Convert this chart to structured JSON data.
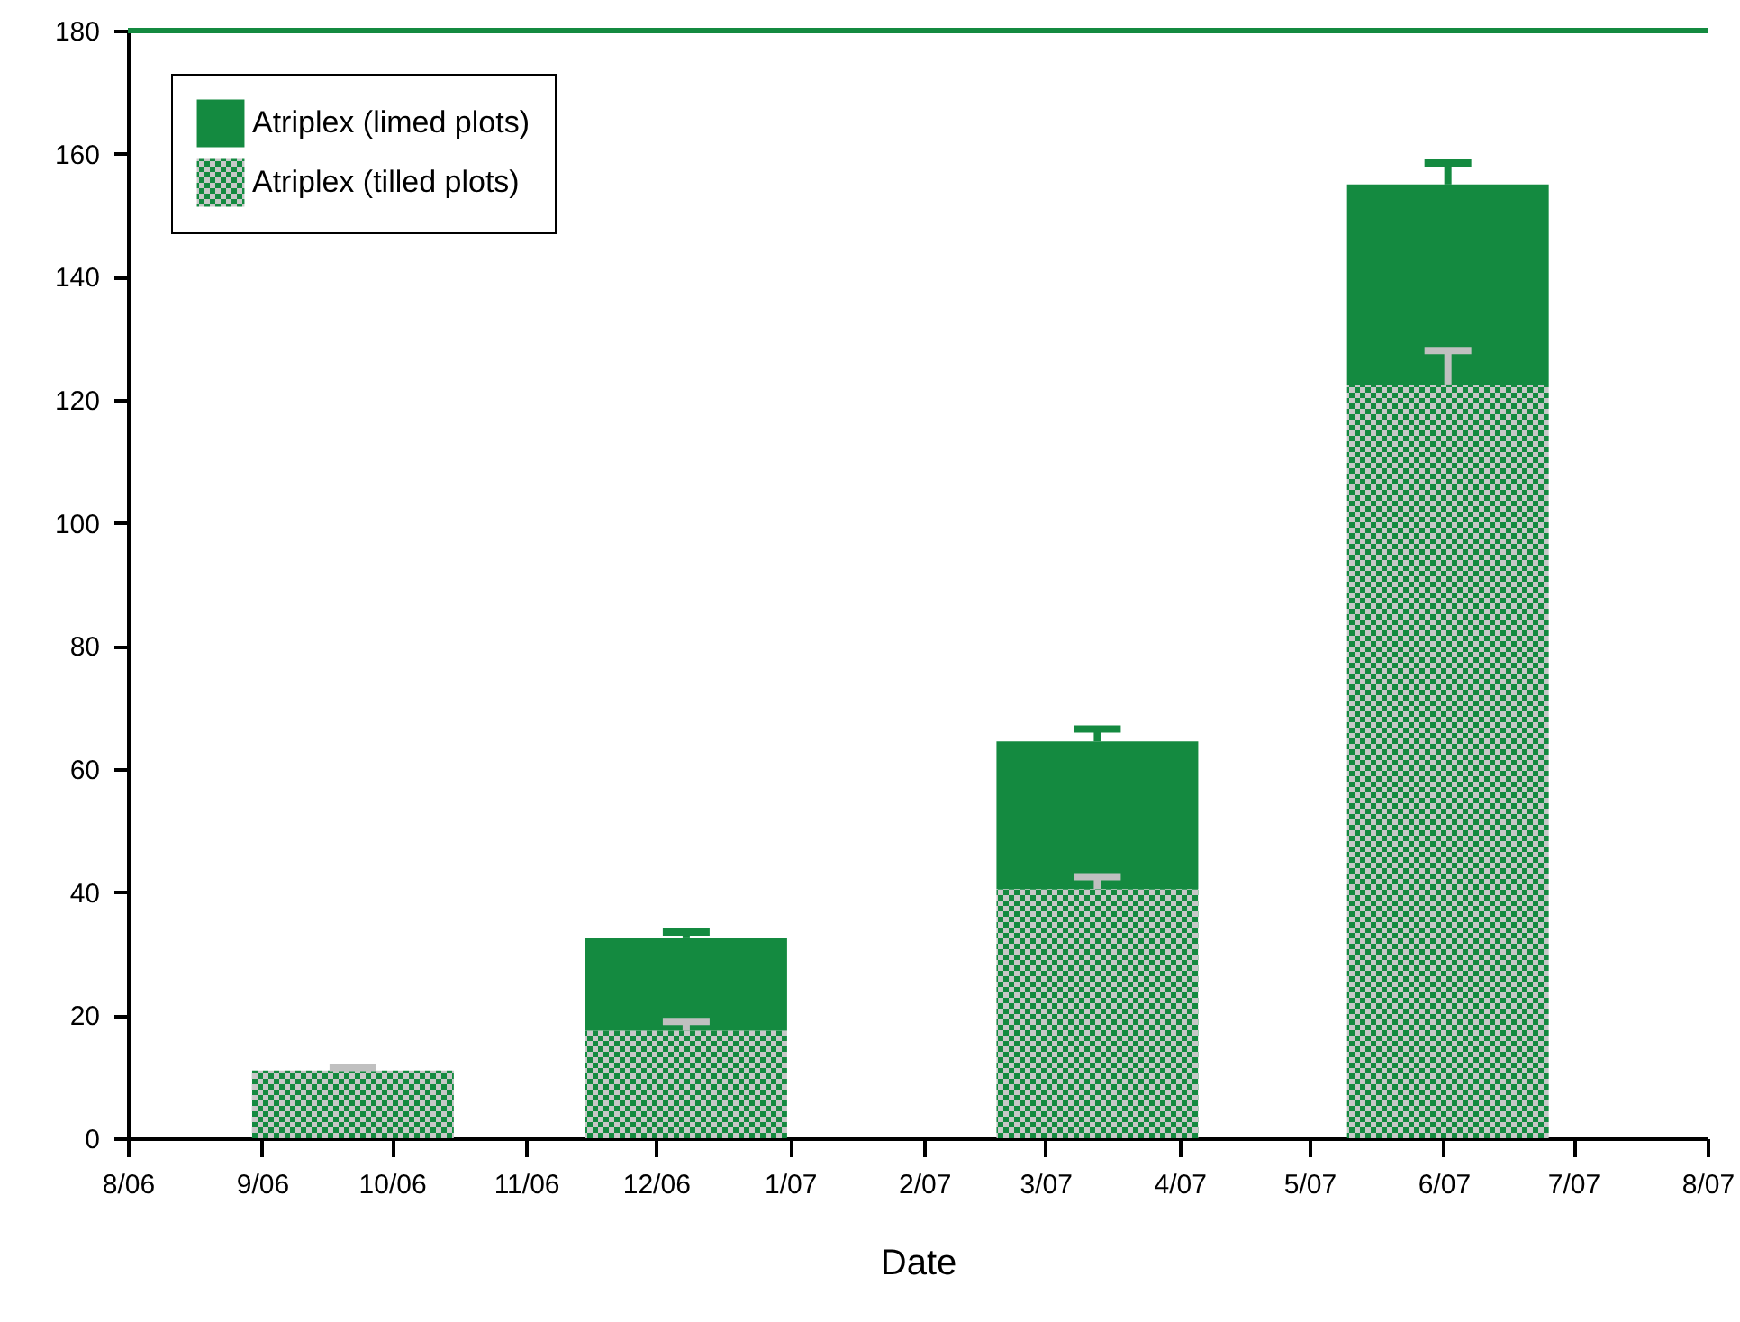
{
  "chart_data": {
    "type": "bar",
    "stacked": true,
    "xlabel": "Date",
    "x": [
      "2006-09-22",
      "2006-12-08",
      "2007-03-13",
      "2007-06-02"
    ],
    "series": [
      {
        "name": "Atriplex (tilled plots)",
        "color": "#148a40",
        "values": [
          11,
          17.5,
          40.5,
          122.5
        ],
        "errors": [
          [
            11,
            11.5
          ],
          [
            17.5,
            19
          ],
          [
            40.5,
            42.5
          ],
          [
            122.5,
            128
          ]
        ]
      },
      {
        "name": "Atriplex (limed plots)",
        "color": "#148a40",
        "values": [
          null,
          15,
          24,
          32.5
        ],
        "errors": [
          null,
          [
            32.5,
            33.5
          ],
          [
            64.5,
            66.5
          ],
          [
            155,
            158.5
          ]
        ]
      }
    ],
    "xlim": [
      "2006-08",
      "2007-08"
    ],
    "xticks": [
      {
        "value": "2006-08",
        "label": "8/06"
      },
      {
        "value": "2006-09",
        "label": "9/06"
      },
      {
        "value": "2006-10",
        "label": "10/06"
      },
      {
        "value": "2006-11",
        "label": "11/06"
      },
      {
        "value": "2006-12",
        "label": "12/06"
      },
      {
        "value": "2007-01",
        "label": "1/07"
      },
      {
        "value": "2007-02",
        "label": "2/07"
      },
      {
        "value": "2007-03",
        "label": "3/07"
      },
      {
        "value": "2007-04",
        "label": "4/07"
      },
      {
        "value": "2007-05",
        "label": "5/07"
      },
      {
        "value": "2007-06",
        "label": "6/07"
      },
      {
        "value": "2007-07",
        "label": "7/07"
      },
      {
        "value": "2007-08",
        "label": "8/07"
      }
    ],
    "ylim": [
      0,
      180
    ],
    "yticks": [
      0,
      20,
      40,
      60,
      80,
      100,
      120,
      140,
      160,
      180
    ],
    "ref_lines": [
      {
        "axis": "y",
        "value": 180,
        "color": "#148a40"
      }
    ],
    "legend": "top left",
    "grid": false
  }
}
